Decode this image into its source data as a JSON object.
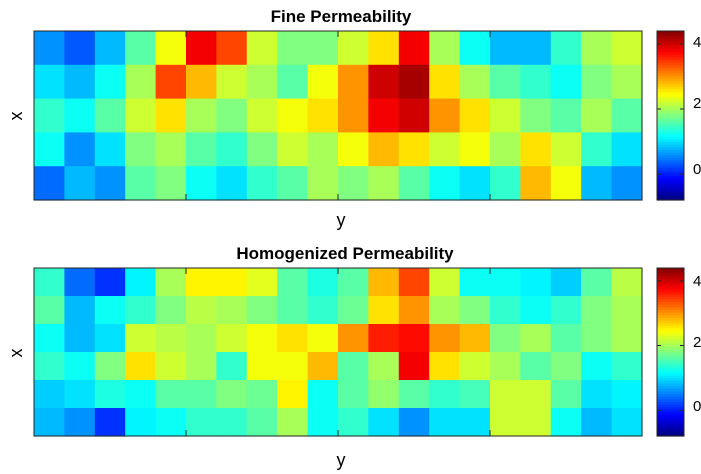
{
  "chart_data": [
    {
      "type": "heatmap",
      "title": "Fine Permeability",
      "xlabel": "y",
      "ylabel": "x",
      "colorbar": {
        "ticks": [
          0,
          2,
          4
        ],
        "range": [
          -0.8,
          4.4
        ],
        "colormap": "jet"
      },
      "grid_rows": 5,
      "grid_cols": 20,
      "values": [
        [
          0.6,
          0.3,
          0.8,
          1.6,
          2.4,
          3.8,
          3.4,
          2.2,
          1.8,
          1.8,
          2.2,
          2.6,
          3.8,
          2.0,
          1.2,
          0.8,
          0.8,
          1.4,
          2.0,
          2.2
        ],
        [
          1.0,
          0.8,
          1.2,
          2.0,
          3.4,
          2.8,
          2.2,
          2.0,
          1.6,
          2.4,
          3.0,
          4.0,
          4.2,
          2.6,
          2.0,
          1.6,
          1.4,
          1.2,
          1.8,
          2.0
        ],
        [
          1.4,
          1.2,
          1.6,
          2.2,
          2.6,
          2.0,
          1.8,
          2.2,
          2.4,
          2.6,
          3.0,
          3.8,
          4.0,
          3.0,
          2.6,
          2.2,
          1.8,
          1.6,
          2.0,
          1.6
        ],
        [
          1.2,
          0.6,
          1.0,
          1.8,
          2.0,
          1.6,
          1.4,
          1.8,
          2.2,
          2.0,
          2.4,
          2.8,
          2.6,
          2.2,
          2.4,
          2.0,
          2.6,
          2.2,
          1.4,
          1.0
        ],
        [
          0.4,
          0.8,
          0.6,
          1.6,
          1.8,
          1.2,
          1.0,
          1.4,
          1.6,
          2.0,
          1.8,
          2.0,
          1.6,
          1.2,
          1.0,
          1.4,
          2.8,
          2.4,
          0.8,
          0.6
        ]
      ]
    },
    {
      "type": "heatmap",
      "title": "Homogenized Permeability",
      "xlabel": "y",
      "ylabel": "x",
      "colorbar": {
        "ticks": [
          0,
          2,
          4
        ],
        "range": [
          -0.8,
          4.4
        ],
        "colormap": "jet"
      },
      "grid_rows": 6,
      "grid_cols": 20,
      "values": [
        [
          1.4,
          0.4,
          0.1,
          1.1,
          2.0,
          2.5,
          2.5,
          2.3,
          1.6,
          1.3,
          1.6,
          2.8,
          3.4,
          2.2,
          1.2,
          1.2,
          1.1,
          0.9,
          1.6,
          2.1
        ],
        [
          1.6,
          0.8,
          1.2,
          1.4,
          1.8,
          2.1,
          2.0,
          1.8,
          1.6,
          1.4,
          1.7,
          2.6,
          3.0,
          2.0,
          1.8,
          1.4,
          1.2,
          1.4,
          1.8,
          2.0
        ],
        [
          1.2,
          0.8,
          1.0,
          2.2,
          2.1,
          2.0,
          2.2,
          2.4,
          2.6,
          2.4,
          3.0,
          3.6,
          3.7,
          3.0,
          2.8,
          1.8,
          2.0,
          1.6,
          1.8,
          2.0
        ],
        [
          1.4,
          1.2,
          1.8,
          2.6,
          2.2,
          2.0,
          1.4,
          2.4,
          2.4,
          2.8,
          1.6,
          2.0,
          3.8,
          2.6,
          2.2,
          2.0,
          1.6,
          1.8,
          1.2,
          1.4
        ],
        [
          0.9,
          1.0,
          1.3,
          1.2,
          1.6,
          1.6,
          1.8,
          1.7,
          2.5,
          1.2,
          1.6,
          1.9,
          1.6,
          1.4,
          1.5,
          2.2,
          2.2,
          1.6,
          1.0,
          1.1
        ],
        [
          0.8,
          0.6,
          0.1,
          1.1,
          1.2,
          1.4,
          1.4,
          1.6,
          2.0,
          1.2,
          1.4,
          1.0,
          0.6,
          1.0,
          1.0,
          2.2,
          2.2,
          1.2,
          0.8,
          1.0
        ]
      ]
    }
  ]
}
